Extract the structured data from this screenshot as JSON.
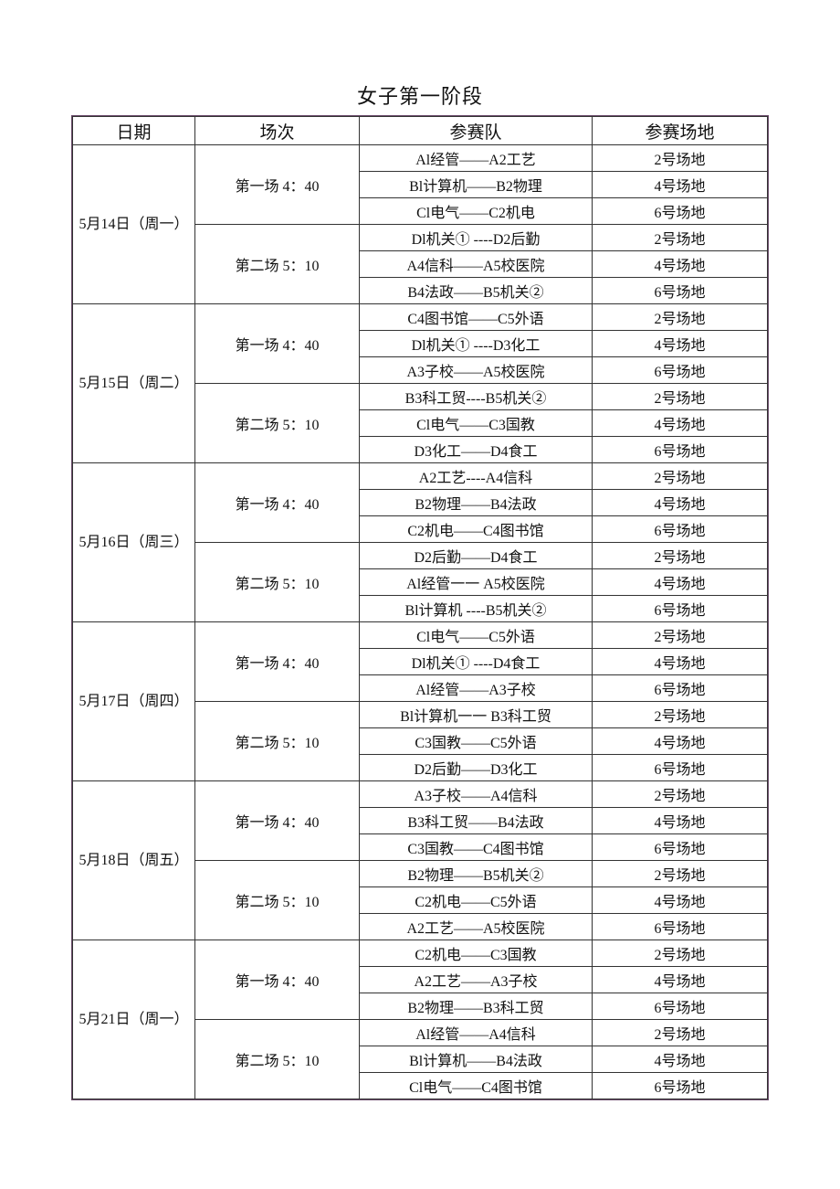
{
  "title": "女子第一阶段",
  "headers": [
    "日期",
    "场次",
    "参赛队",
    "场地"
  ],
  "header_labels": {
    "date": "日期",
    "session": "场次",
    "teams": "参赛队",
    "venue": "参赛场地"
  },
  "days": [
    {
      "date": "5月14日（周一）",
      "sessions": [
        {
          "label": "第一场 4：40",
          "matches": [
            [
              "Al经管——A2工艺",
              "2号场地"
            ],
            [
              "Bl计算机——B2物理",
              "4号场地"
            ],
            [
              "Cl电气——C2机电",
              "6号场地"
            ]
          ]
        },
        {
          "label": "第二场 5：10",
          "matches": [
            [
              "Dl机关① ----D2后勤",
              "2号场地"
            ],
            [
              "A4信科——A5校医院",
              "4号场地"
            ],
            [
              "B4法政——B5机关②",
              "6号场地"
            ]
          ]
        }
      ]
    },
    {
      "date": "5月15日（周二）",
      "sessions": [
        {
          "label": "第一场 4：40",
          "matches": [
            [
              "C4图书馆——C5外语",
              "2号场地"
            ],
            [
              "Dl机关① ----D3化工",
              "4号场地"
            ],
            [
              "A3子校——A5校医院",
              "6号场地"
            ]
          ]
        },
        {
          "label": "第二场 5：10",
          "matches": [
            [
              "B3科工贸----B5机关②",
              "2号场地"
            ],
            [
              "Cl电气——C3国教",
              "4号场地"
            ],
            [
              "D3化工——D4食工",
              "6号场地"
            ]
          ]
        }
      ]
    },
    {
      "date": "5月16日（周三）",
      "sessions": [
        {
          "label": "第一场 4：40",
          "matches": [
            [
              "A2工艺----A4信科",
              "2号场地"
            ],
            [
              "B2物理——B4法政",
              "4号场地"
            ],
            [
              "C2机电——C4图书馆",
              "6号场地"
            ]
          ]
        },
        {
          "label": "第二场 5：10",
          "matches": [
            [
              "D2后勤——D4食工",
              "2号场地"
            ],
            [
              "Al经管一一 A5校医院",
              "4号场地"
            ],
            [
              "Bl计算机 ----B5机关②",
              "6号场地"
            ]
          ]
        }
      ]
    },
    {
      "date": "5月17日（周四）",
      "sessions": [
        {
          "label": "第一场 4：40",
          "matches": [
            [
              "Cl电气——C5外语",
              "2号场地"
            ],
            [
              "Dl机关① ----D4食工",
              "4号场地"
            ],
            [
              "Al经管——A3子校",
              "6号场地"
            ]
          ]
        },
        {
          "label": "第二场 5：10",
          "matches": [
            [
              "Bl计算机一一 B3科工贸",
              "2号场地"
            ],
            [
              "C3国教——C5外语",
              "4号场地"
            ],
            [
              "D2后勤——D3化工",
              "6号场地"
            ]
          ]
        }
      ]
    },
    {
      "date": "5月18日（周五）",
      "sessions": [
        {
          "label": "第一场 4：40",
          "matches": [
            [
              "A3子校——A4信科",
              "2号场地"
            ],
            [
              "B3科工贸——B4法政",
              "4号场地"
            ],
            [
              "C3国教——C4图书馆",
              "6号场地"
            ]
          ]
        },
        {
          "label": "第二场 5：10",
          "matches": [
            [
              "B2物理——B5机关②",
              "2号场地"
            ],
            [
              "C2机电——C5外语",
              "4号场地"
            ],
            [
              "A2工艺——A5校医院",
              "6号场地"
            ]
          ]
        }
      ]
    },
    {
      "date": "5月21日（周一）",
      "sessions": [
        {
          "label": "第一场 4：40",
          "matches": [
            [
              "C2机电——C3国教",
              "2号场地"
            ],
            [
              "A2工艺——A3子校",
              "4号场地"
            ],
            [
              "B2物理——B3科工贸",
              "6号场地"
            ]
          ]
        },
        {
          "label": "第二场 5：10",
          "matches": [
            [
              "Al经管——A4信科",
              "2号场地"
            ],
            [
              "Bl计算机——B4法政",
              "4号场地"
            ],
            [
              "Cl电气——C4图书馆",
              "6号场地"
            ]
          ]
        }
      ]
    }
  ]
}
